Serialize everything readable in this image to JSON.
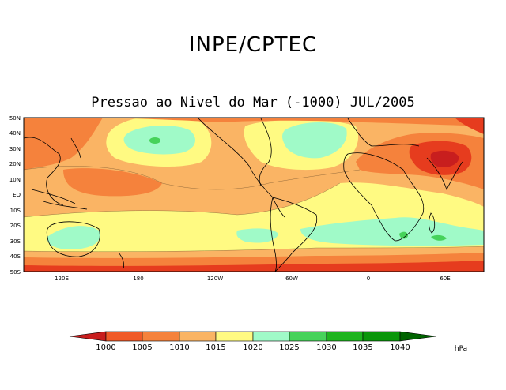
{
  "header": {
    "org": "INPE/CPTEC",
    "subtitle": "Pressao ao Nivel do Mar (-1000) JUL/2005"
  },
  "map": {
    "lat_labels": [
      "50N",
      "40N",
      "30N",
      "20N",
      "10N",
      "EQ",
      "10S",
      "20S",
      "30S",
      "40S",
      "50S"
    ],
    "lon_labels": [
      "120E",
      "180",
      "120W",
      "60W",
      "0",
      "60E"
    ]
  },
  "colorbar": {
    "levels": [
      "1000",
      "1005",
      "1010",
      "1015",
      "1020",
      "1025",
      "1030",
      "1035",
      "1040"
    ],
    "unit": "hPa",
    "colors": [
      "#c81e1e",
      "#f05a28",
      "#f5823c",
      "#fab464",
      "#fffa82",
      "#a0fac8",
      "#46d25a",
      "#1eb41e",
      "#0a960a",
      "#006400"
    ]
  },
  "palette": {
    "c1000": "#e63c1e",
    "c1005": "#f5823c",
    "c1010": "#fab464",
    "c1015": "#fffa82",
    "c1020": "#a0fac8",
    "c1025": "#46d25a",
    "land": "#000000"
  }
}
